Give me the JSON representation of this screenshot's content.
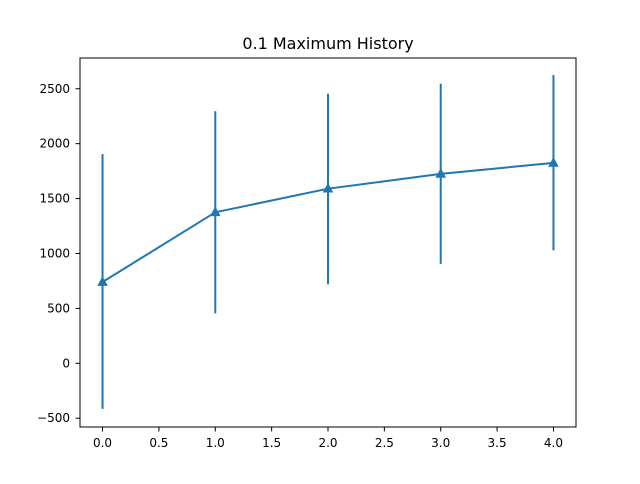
{
  "chart_data": {
    "type": "line",
    "title": "0.1 Maximum History",
    "xlabel": "",
    "ylabel": "",
    "x": [
      0,
      1,
      2,
      3,
      4
    ],
    "series": [
      {
        "values": [
          740,
          1375,
          1590,
          1725,
          1825
        ],
        "error_low": [
          -415,
          455,
          720,
          905,
          1030
        ],
        "error_high": [
          1905,
          2295,
          2455,
          2545,
          2625
        ],
        "marker": "triangle-up",
        "color": "#1f77b4"
      }
    ],
    "xlim": [
      -0.2,
      4.2
    ],
    "ylim": [
      -580,
      2780
    ],
    "xticks": [
      0,
      0.5,
      1,
      1.5,
      2,
      2.5,
      3,
      3.5,
      4
    ],
    "xtick_labels": [
      "0.0",
      "0.5",
      "1.0",
      "1.5",
      "2.0",
      "2.5",
      "3.0",
      "3.5",
      "4.0"
    ],
    "yticks": [
      -500,
      0,
      500,
      1000,
      1500,
      2000,
      2500
    ],
    "ytick_labels": [
      "−500",
      "0",
      "500",
      "1000",
      "1500",
      "2000",
      "2500"
    ],
    "grid": false,
    "legend": "none"
  }
}
